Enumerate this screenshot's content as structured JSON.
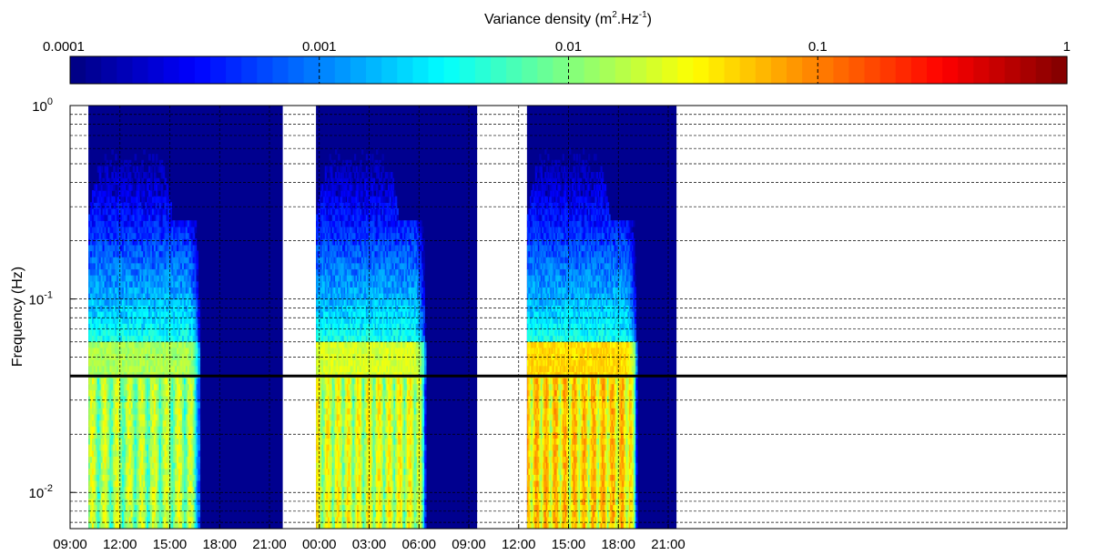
{
  "chart_data": {
    "type": "heatmap",
    "colorbar": {
      "title_main": "Variance density (m",
      "title_sup1": "2",
      "title_mid": ".Hz",
      "title_sup2": "-1",
      "title_end": ")",
      "ticks": [
        {
          "value": 0.0001,
          "label": "0.0001"
        },
        {
          "value": 0.001,
          "label": "0.001"
        },
        {
          "value": 0.01,
          "label": "0.01"
        },
        {
          "value": 0.1,
          "label": "0.1"
        },
        {
          "value": 1,
          "label": "1"
        }
      ],
      "range": [
        0.0001,
        1
      ],
      "scale": "log",
      "colormap": "jet"
    },
    "xlabel": "",
    "ylabel": "Frequency (Hz)",
    "y_scale": "log",
    "ylim": [
      0.0065,
      1
    ],
    "y_ticks": [
      {
        "value": 0.01,
        "base": "10",
        "exp": "-2"
      },
      {
        "value": 0.1,
        "base": "10",
        "exp": "-1"
      },
      {
        "value": 1,
        "base": "10",
        "exp": "0"
      }
    ],
    "x_unit": "hours",
    "xlim": [
      0,
      60
    ],
    "x_ticks": [
      {
        "value": 0,
        "label": "09:00"
      },
      {
        "value": 3,
        "label": "12:00"
      },
      {
        "value": 6,
        "label": "15:00"
      },
      {
        "value": 9,
        "label": "18:00"
      },
      {
        "value": 12,
        "label": "21:00"
      },
      {
        "value": 15,
        "label": "00:00"
      },
      {
        "value": 18,
        "label": "03:00"
      },
      {
        "value": 21,
        "label": "06:00"
      },
      {
        "value": 24,
        "label": "09:00"
      },
      {
        "value": 27,
        "label": "12:00"
      },
      {
        "value": 30,
        "label": "15:00"
      },
      {
        "value": 33,
        "label": "18:00"
      },
      {
        "value": 36,
        "label": "21:00"
      }
    ],
    "reference_line_frequency": 0.04,
    "grid": true,
    "segments": [
      {
        "start": 1.1,
        "end": 12.8,
        "active_start": 1.1,
        "active_end": 7.2,
        "peak_level": 0.04
      },
      {
        "start": 14.8,
        "end": 24.5,
        "active_start": 14.8,
        "active_end": 20.8,
        "peak_level": 0.06
      },
      {
        "start": 27.5,
        "end": 36.5,
        "active_start": 27.5,
        "active_end": 33.5,
        "peak_level": 0.12
      }
    ],
    "colors": {
      "background_low": "#00008f",
      "reference_line": "#000000"
    }
  }
}
